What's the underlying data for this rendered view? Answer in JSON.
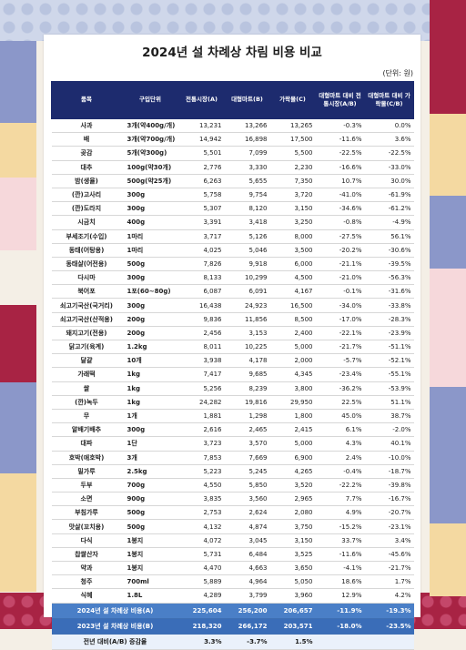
{
  "title": "2024년 설 차례상 차림 비용 비교",
  "unit": "(단위: 원)",
  "columns": [
    "품목",
    "구입단위",
    "전통시장(A)",
    "대형마트(B)",
    "가락몰(C)",
    "대형마트 대비 전통시장(A/B)",
    "대형마트 대비 가락몰(C/B)"
  ],
  "rows": [
    [
      "사과",
      "3개(약400g/개)",
      "13,231",
      "13,266",
      "13,265",
      "-0.3%",
      "0.0%"
    ],
    [
      "배",
      "3개(약700g/개)",
      "14,942",
      "16,898",
      "17,500",
      "-11.6%",
      "3.6%"
    ],
    [
      "곶감",
      "5개(약300g)",
      "5,501",
      "7,099",
      "5,500",
      "-22.5%",
      "-22.5%"
    ],
    [
      "대추",
      "100g(약30개)",
      "2,776",
      "3,330",
      "2,230",
      "-16.6%",
      "-33.0%"
    ],
    [
      "밤(생율)",
      "500g(약25개)",
      "6,263",
      "5,655",
      "7,350",
      "10.7%",
      "30.0%"
    ],
    [
      "(깐)고사리",
      "300g",
      "5,758",
      "9,754",
      "3,720",
      "-41.0%",
      "-61.9%"
    ],
    [
      "(깐)도라지",
      "300g",
      "5,307",
      "8,120",
      "3,150",
      "-34.6%",
      "-61.2%"
    ],
    [
      "시금치",
      "400g",
      "3,391",
      "3,418",
      "3,250",
      "-0.8%",
      "-4.9%"
    ],
    [
      "부세조기(수입)",
      "1마리",
      "3,717",
      "5,126",
      "8,000",
      "-27.5%",
      "56.1%"
    ],
    [
      "동태(어탕용)",
      "1마리",
      "4,025",
      "5,046",
      "3,500",
      "-20.2%",
      "-30.6%"
    ],
    [
      "동태살(어전용)",
      "500g",
      "7,826",
      "9,918",
      "6,000",
      "-21.1%",
      "-39.5%"
    ],
    [
      "다시마",
      "300g",
      "8,133",
      "10,299",
      "4,500",
      "-21.0%",
      "-56.3%"
    ],
    [
      "북어포",
      "1포(60~80g)",
      "6,087",
      "6,091",
      "4,167",
      "-0.1%",
      "-31.6%"
    ],
    [
      "쇠고기국산(국거리)",
      "300g",
      "16,438",
      "24,923",
      "16,500",
      "-34.0%",
      "-33.8%"
    ],
    [
      "쇠고기국산(산적용)",
      "200g",
      "9,836",
      "11,856",
      "8,500",
      "-17.0%",
      "-28.3%"
    ],
    [
      "돼지고기(전용)",
      "200g",
      "2,456",
      "3,153",
      "2,400",
      "-22.1%",
      "-23.9%"
    ],
    [
      "닭고기(육계)",
      "1.2kg",
      "8,011",
      "10,225",
      "5,000",
      "-21.7%",
      "-51.1%"
    ],
    [
      "달걀",
      "10개",
      "3,938",
      "4,178",
      "2,000",
      "-5.7%",
      "-52.1%"
    ],
    [
      "가래떡",
      "1kg",
      "7,417",
      "9,685",
      "4,345",
      "-23.4%",
      "-55.1%"
    ],
    [
      "쌀",
      "1kg",
      "5,256",
      "8,239",
      "3,800",
      "-36.2%",
      "-53.9%"
    ],
    [
      "(깐)녹두",
      "1kg",
      "24,282",
      "19,816",
      "29,950",
      "22.5%",
      "51.1%"
    ],
    [
      "무",
      "1개",
      "1,881",
      "1,298",
      "1,800",
      "45.0%",
      "38.7%"
    ],
    [
      "알배기배추",
      "300g",
      "2,616",
      "2,465",
      "2,415",
      "6.1%",
      "-2.0%"
    ],
    [
      "대파",
      "1단",
      "3,723",
      "3,570",
      "5,000",
      "4.3%",
      "40.1%"
    ],
    [
      "호박(애호박)",
      "3개",
      "7,853",
      "7,669",
      "6,900",
      "2.4%",
      "-10.0%"
    ],
    [
      "밀가루",
      "2.5kg",
      "5,223",
      "5,245",
      "4,265",
      "-0.4%",
      "-18.7%"
    ],
    [
      "두부",
      "700g",
      "4,550",
      "5,850",
      "3,520",
      "-22.2%",
      "-39.8%"
    ],
    [
      "소면",
      "900g",
      "3,835",
      "3,560",
      "2,965",
      "7.7%",
      "-16.7%"
    ],
    [
      "부침가루",
      "500g",
      "2,753",
      "2,624",
      "2,080",
      "4.9%",
      "-20.7%"
    ],
    [
      "맛살(꼬치용)",
      "500g",
      "4,132",
      "4,874",
      "3,750",
      "-15.2%",
      "-23.1%"
    ],
    [
      "다식",
      "1봉지",
      "4,072",
      "3,045",
      "3,150",
      "33.7%",
      "3.4%"
    ],
    [
      "찹쌀산자",
      "1봉지",
      "5,731",
      "6,484",
      "3,525",
      "-11.6%",
      "-45.6%"
    ],
    [
      "약과",
      "1봉지",
      "4,470",
      "4,663",
      "3,650",
      "-4.1%",
      "-21.7%"
    ],
    [
      "청주",
      "700ml",
      "5,889",
      "4,964",
      "5,050",
      "18.6%",
      "1.7%"
    ],
    [
      "식혜",
      "1.8L",
      "4,289",
      "3,799",
      "3,960",
      "12.9%",
      "4.2%"
    ]
  ],
  "summary": [
    [
      "2024년 설 차례상 비용(A)",
      "225,604",
      "256,200",
      "206,657",
      "-11.9%",
      "-19.3%"
    ],
    [
      "2023년 설 차례상 비용(B)",
      "218,320",
      "266,172",
      "203,571",
      "-18.0%",
      "-23.5%"
    ]
  ],
  "diff": [
    "전년 대비(A/B) 증감율",
    "3.3%",
    "-3.7%",
    "1.5%",
    "",
    ""
  ],
  "colors": {
    "header": "#1d2b6e",
    "summary": "#4a7fc7",
    "bottom_band": "#a82344"
  }
}
